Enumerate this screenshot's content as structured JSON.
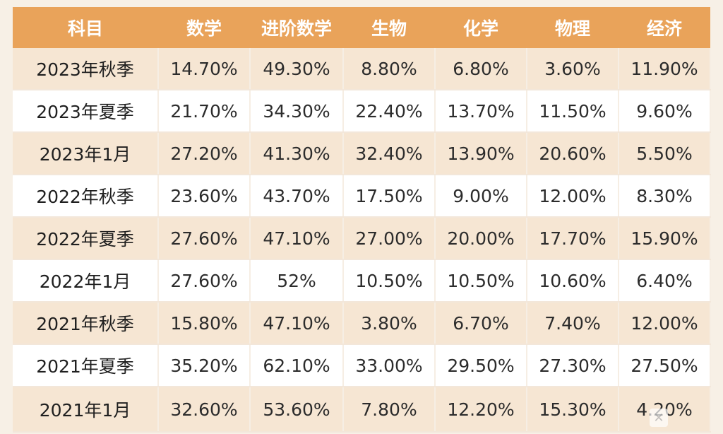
{
  "table": {
    "headers": [
      "科目",
      "数学",
      "进阶数学",
      "生物",
      "化学",
      "物理",
      "经济"
    ],
    "rows": [
      [
        "2023年秋季",
        "14.70%",
        "49.30%",
        "8.80%",
        "6.80%",
        "3.60%",
        "11.90%"
      ],
      [
        "2023年夏季",
        "21.70%",
        "34.30%",
        "22.40%",
        "13.70%",
        "11.50%",
        "9.60%"
      ],
      [
        "2023年1月",
        "27.20%",
        "41.30%",
        "32.40%",
        "13.90%",
        "20.60%",
        "5.50%"
      ],
      [
        "2022年秋季",
        "23.60%",
        "43.70%",
        "17.50%",
        "9.00%",
        "12.00%",
        "8.30%"
      ],
      [
        "2022年夏季",
        "27.60%",
        "47.10%",
        "27.00%",
        "20.00%",
        "17.70%",
        "15.90%"
      ],
      [
        "2022年1月",
        "27.60%",
        "52%",
        "10.50%",
        "10.50%",
        "10.60%",
        "6.40%"
      ],
      [
        "2021年秋季",
        "15.80%",
        "47.10%",
        "3.80%",
        "6.70%",
        "7.40%",
        "12.00%"
      ],
      [
        "2021年夏季",
        "35.20%",
        "62.10%",
        "33.00%",
        "29.50%",
        "27.30%",
        "27.50%"
      ],
      [
        "2021年1月",
        "32.60%",
        "53.60%",
        "7.80%",
        "12.20%",
        "15.30%",
        "4.20%"
      ]
    ]
  },
  "watermark": {
    "icon": "x-logo-icon"
  },
  "colors": {
    "header_bg": "#e9a35a",
    "row_odd_bg": "#f6e6d3",
    "row_even_bg": "#ffffff"
  }
}
